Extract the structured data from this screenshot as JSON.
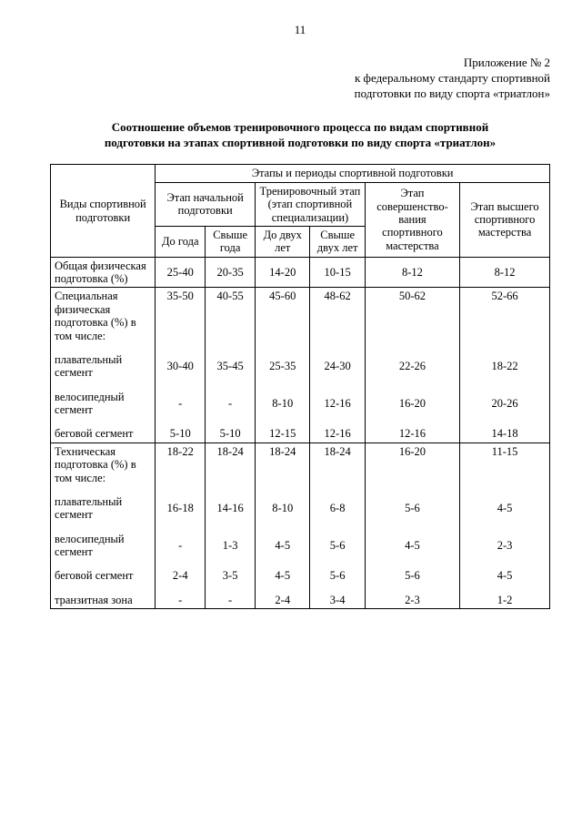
{
  "page_number": "11",
  "appendix": {
    "line1": "Приложение № 2",
    "line2": "к федеральному стандарту спортивной",
    "line3": "подготовки по виду спорта «триатлон»"
  },
  "title": {
    "line1": "Соотношение объемов тренировочного процесса по видам спортивной",
    "line2": "подготовки на этапах спортивной подготовки по виду спорта «триатлон»"
  },
  "table": {
    "type": "table",
    "col_widths": [
      "21%",
      "10%",
      "10%",
      "11%",
      "11%",
      "19%",
      "18%"
    ],
    "background_color": "#ffffff",
    "border_color": "#000000",
    "font_family": "Times New Roman",
    "header": {
      "rowlabel": "Виды спортивной подготовки",
      "super": "Этапы и периоды спортивной подготовки",
      "stage1": "Этап начальной подготовки",
      "stage2": "Тренировочный этап (этап спортивной специализации)",
      "stage3": "Этап совершенство-вания спортивного мастерства",
      "stage4": "Этап высшего спортивного мастерства",
      "sub1": "До года",
      "sub2": "Свыше года",
      "sub3": "До двух лет",
      "sub4": "Свыше двух лет"
    },
    "rows": [
      {
        "label": "Общая физическая подготовка (%)",
        "c": [
          "25-40",
          "20-35",
          "14-20",
          "10-15",
          "8-12",
          "8-12"
        ]
      },
      {
        "label": "Специальная физическая подготовка (%) в том числе:",
        "c": [
          "35-50",
          "40-55",
          "45-60",
          "48-62",
          "50-62",
          "52-66"
        ],
        "top": true,
        "group_start": true
      },
      {
        "label": "плавательный сегмент",
        "c": [
          "30-40",
          "35-45",
          "25-35",
          "24-30",
          "22-26",
          "18-22"
        ],
        "noborder": true
      },
      {
        "label": "велосипедный сегмент",
        "c": [
          "-",
          "-",
          "8-10",
          "12-16",
          "16-20",
          "20-26"
        ],
        "noborder": true
      },
      {
        "label": "беговой сегмент",
        "c": [
          "5-10",
          "5-10",
          "12-15",
          "12-16",
          "12-16",
          "14-18"
        ],
        "noborder": true,
        "group_end": true
      },
      {
        "label": "Техническая подготовка (%) в том числе:",
        "c": [
          "18-22",
          "18-24",
          "18-24",
          "18-24",
          "16-20",
          "11-15"
        ],
        "top": true,
        "group_start": true
      },
      {
        "label": "плавательный сегмент",
        "c": [
          "16-18",
          "14-16",
          "8-10",
          "6-8",
          "5-6",
          "4-5"
        ],
        "noborder": true
      },
      {
        "label": "велосипедный сегмент",
        "c": [
          "-",
          "1-3",
          "4-5",
          "5-6",
          "4-5",
          "2-3"
        ],
        "noborder": true
      },
      {
        "label": "беговой сегмент",
        "c": [
          "2-4",
          "3-5",
          "4-5",
          "5-6",
          "5-6",
          "4-5"
        ],
        "noborder": true
      },
      {
        "label": "транзитная зона",
        "c": [
          "-",
          "-",
          "2-4",
          "3-4",
          "2-3",
          "1-2"
        ],
        "noborder": true,
        "group_end": true
      }
    ]
  }
}
